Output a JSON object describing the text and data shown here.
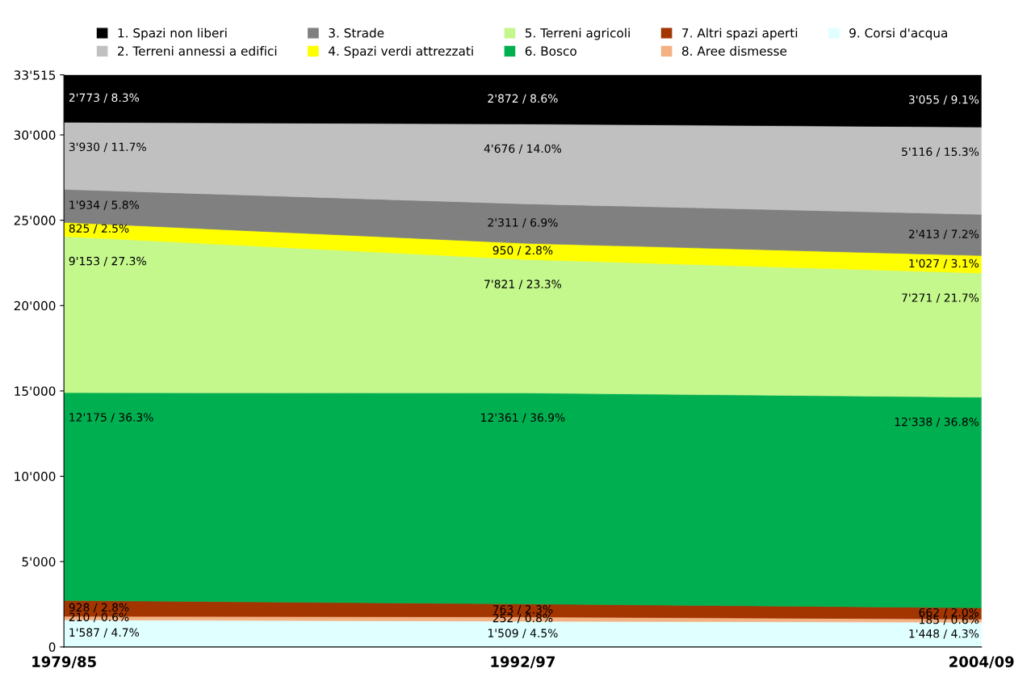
{
  "chart_data": {
    "type": "area",
    "stacked": true,
    "categories": [
      "1979/85",
      "1992/97",
      "2004/09"
    ],
    "ylim": [
      0,
      33515
    ],
    "yticks": [
      {
        "value": 0,
        "label": "0"
      },
      {
        "value": 5000,
        "label": "5'000"
      },
      {
        "value": 10000,
        "label": "10'000"
      },
      {
        "value": 15000,
        "label": "15'000"
      },
      {
        "value": 20000,
        "label": "20'000"
      },
      {
        "value": 25000,
        "label": "25'000"
      },
      {
        "value": 30000,
        "label": "30'000"
      },
      {
        "value": 33515,
        "label": "33'515"
      }
    ],
    "grid": false,
    "legend": "top",
    "series": [
      {
        "name": "9. Corsi d'acqua",
        "color": "#e0ffff",
        "values": [
          1587,
          1509,
          1448
        ],
        "value_labels": [
          "1'587 / 4.7%",
          "1'509 / 4.5%",
          "1'448 / 4.3%"
        ]
      },
      {
        "name": "8. Aree dismesse",
        "color": "#f4b183",
        "values": [
          210,
          252,
          185
        ],
        "value_labels": [
          "210 / 0.6%",
          "252 / 0.8%",
          "185 / 0.6%"
        ]
      },
      {
        "name": "7. Altri spazi aperti",
        "color": "#a33500",
        "values": [
          928,
          763,
          662
        ],
        "value_labels": [
          "928 / 2.8%",
          "763 / 2.3%",
          "662 / 2.0%"
        ]
      },
      {
        "name": "6. Bosco",
        "color": "#00b050",
        "values": [
          12175,
          12361,
          12338
        ],
        "value_labels": [
          "12'175 / 36.3%",
          "12'361 / 36.9%",
          "12'338 / 36.8%"
        ]
      },
      {
        "name": "5. Terreni agricoli",
        "color": "#c4f78c",
        "values": [
          9153,
          7821,
          7271
        ],
        "value_labels": [
          "9'153 / 27.3%",
          "7'821 / 23.3%",
          "7'271 / 21.7%"
        ]
      },
      {
        "name": "4. Spazi verdi attrezzati",
        "color": "#ffff00",
        "values": [
          825,
          950,
          1027
        ],
        "value_labels": [
          "825 / 2.5%",
          "950 / 2.8%",
          "1'027 / 3.1%"
        ]
      },
      {
        "name": "3. Strade",
        "color": "#808080",
        "values": [
          1934,
          2311,
          2413
        ],
        "value_labels": [
          "1'934 / 5.8%",
          "2'311 / 6.9%",
          "2'413 / 7.2%"
        ]
      },
      {
        "name": "2. Terreni annessi a edifici",
        "color": "#c0c0c0",
        "values": [
          3930,
          4676,
          5116
        ],
        "value_labels": [
          "3'930 / 11.7%",
          "4'676 / 14.0%",
          "5'116 / 15.3%"
        ]
      },
      {
        "name": "1. Spazi non liberi",
        "color": "#000000",
        "values": [
          2773,
          2872,
          3055
        ],
        "value_labels": [
          "2'773 / 8.3%",
          "2'872 / 8.6%",
          "3'055 / 9.1%"
        ]
      }
    ]
  }
}
